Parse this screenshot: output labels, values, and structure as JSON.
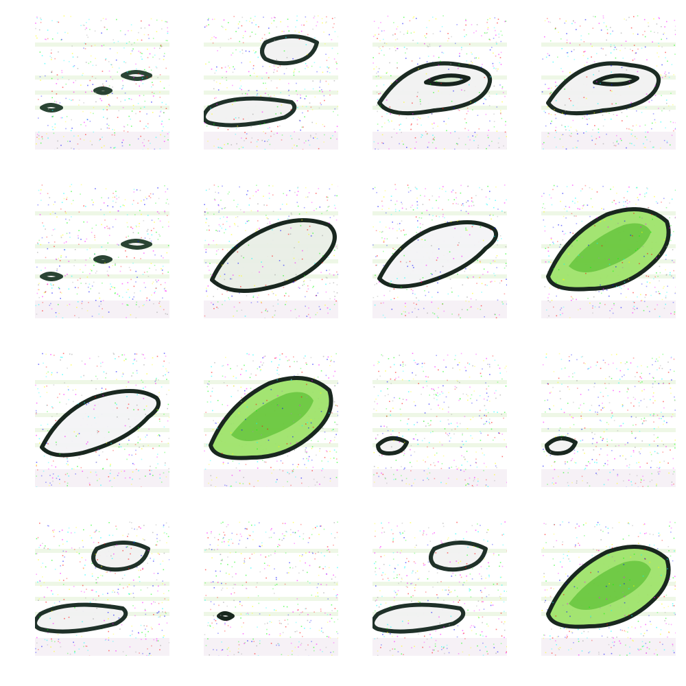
{
  "figure": {
    "description_visible_text": "",
    "samples": [
      {
        "id": 1,
        "kind": "fragments-small"
      },
      {
        "id": 2,
        "kind": "two-blob"
      },
      {
        "id": 3,
        "kind": "ring"
      },
      {
        "id": 4,
        "kind": "ring"
      },
      {
        "id": 5,
        "kind": "fragments-small"
      },
      {
        "id": 6,
        "kind": "large-textured"
      },
      {
        "id": 7,
        "kind": "large-white"
      },
      {
        "id": 8,
        "kind": "large-green"
      },
      {
        "id": 9,
        "kind": "large-white"
      },
      {
        "id": 10,
        "kind": "large-green"
      },
      {
        "id": 11,
        "kind": "dot-left"
      },
      {
        "id": 12,
        "kind": "dot-left"
      },
      {
        "id": 13,
        "kind": "two-blob"
      },
      {
        "id": 14,
        "kind": "dot-tiny"
      },
      {
        "id": 15,
        "kind": "two-blob"
      },
      {
        "id": 16,
        "kind": "large-green"
      }
    ]
  }
}
